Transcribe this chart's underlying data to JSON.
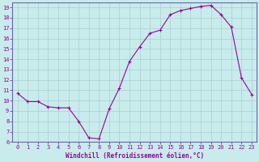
{
  "hours": [
    0,
    1,
    2,
    3,
    4,
    5,
    6,
    7,
    8,
    9,
    10,
    11,
    12,
    13,
    14,
    15,
    16,
    17,
    18,
    19,
    20,
    21,
    22,
    23
  ],
  "values": [
    10.7,
    9.9,
    9.9,
    9.4,
    9.3,
    9.3,
    8.0,
    6.4,
    6.3,
    9.2,
    11.2,
    13.8,
    15.2,
    16.5,
    16.8,
    18.3,
    18.7,
    18.9,
    19.1,
    19.2,
    18.3,
    17.1,
    12.2,
    10.6
  ],
  "line_color": "#990099",
  "marker": "+",
  "marker_size": 3,
  "bg_color": "#c8ecec",
  "grid_color": "#aacece",
  "xlabel": "Windchill (Refroidissement éolien,°C)",
  "ylim": [
    6,
    19.5
  ],
  "yticks": [
    6,
    7,
    8,
    9,
    10,
    11,
    12,
    13,
    14,
    15,
    16,
    17,
    18,
    19
  ],
  "xticks": [
    0,
    1,
    2,
    3,
    4,
    5,
    6,
    7,
    8,
    9,
    10,
    11,
    12,
    13,
    14,
    15,
    16,
    17,
    18,
    19,
    20,
    21,
    22,
    23
  ],
  "tick_label_color": "#990099",
  "xlabel_color": "#990099",
  "border_color": "#6666aa",
  "axis_bg": "#c8ecec",
  "tick_fontsize": 5.0,
  "xlabel_fontsize": 5.5,
  "line_width": 0.8,
  "marker_edge_width": 0.8
}
